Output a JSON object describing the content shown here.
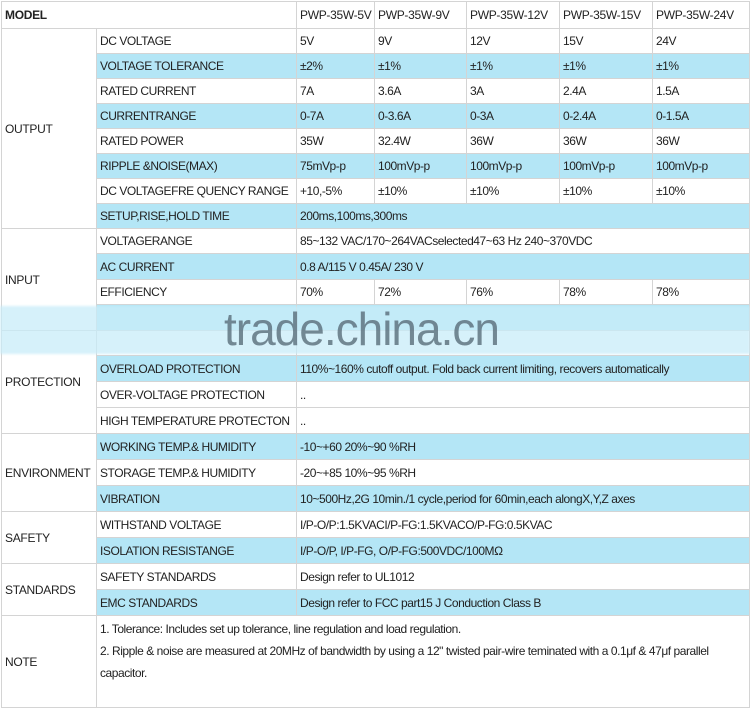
{
  "header": {
    "model_label": "MODEL",
    "models": [
      "PWP-35W-5V",
      "PWP-35W-9V",
      "PWP-35W-12V",
      "PWP-35W-15V",
      "PWP-35W-24V"
    ]
  },
  "output": {
    "section": "OUTPUT",
    "rows": [
      {
        "label": "DC VOLTAGE",
        "values": [
          "5V",
          "9V",
          "12V",
          "15V",
          "24V"
        ]
      },
      {
        "label": "VOLTAGE TOLERANCE",
        "values": [
          "±2%",
          "±1%",
          "±1%",
          "±1%",
          "±1%"
        ]
      },
      {
        "label": "RATED CURRENT",
        "values": [
          "7A",
          "3.6A",
          "3A",
          "2.4A",
          "1.5A"
        ]
      },
      {
        "label": "CURRENTRANGE",
        "values": [
          "0-7A",
          "0-3.6A",
          "0-3A",
          "0-2.4A",
          "0-1.5A"
        ]
      },
      {
        "label": "RATED POWER",
        "values": [
          "35W",
          "32.4W",
          "36W",
          "36W",
          "36W"
        ]
      },
      {
        "label": "RIPPLE &NOISE(MAX)",
        "values": [
          "75mVp-p",
          "100mVp-p",
          "100mVp-p",
          "100mVp-p",
          "100mVp-p"
        ]
      },
      {
        "label": "DC VOLTAGEFRE QUENCY RANGE",
        "values": [
          "+10,-5%",
          "±10%",
          "±10%",
          "±10%",
          "±10%"
        ]
      },
      {
        "label": "SETUP,RISE,HOLD TIME",
        "value": "200ms,100ms,300ms"
      }
    ]
  },
  "input": {
    "section": "INPUT",
    "rows": [
      {
        "label": "VOLTAGERANGE",
        "value": "85~132 VAC/170~264VACselected47~63 Hz 240~370VDC"
      },
      {
        "label": "AC CURRENT",
        "value": "0.8 A/115 V 0.45A/ 230 V"
      },
      {
        "label": "EFFICIENCY",
        "values": [
          "70%",
          "72%",
          "76%",
          "78%",
          "78%"
        ]
      }
    ]
  },
  "protection": {
    "section": "PROTECTION",
    "rows": [
      {
        "label": "OVERLOAD PROTECTION",
        "value": "110%~160% cutoff output. Fold back current limiting, recovers automatically"
      },
      {
        "label": "OVER-VOLTAGE PROTECTION",
        "value": ".."
      },
      {
        "label": "HIGH TEMPERATURE PROTECTON",
        "value": ".."
      }
    ]
  },
  "environment": {
    "section": "ENVIRONMENT",
    "rows": [
      {
        "label": "WORKING TEMP.& HUMIDITY",
        "value": "-10~+60 20%~90 %RH"
      },
      {
        "label": "STORAGE TEMP.& HUMIDITY",
        "value": "-20~+85 10%~95 %RH"
      },
      {
        "label": "VIBRATION",
        "value": "10~500Hz,2G 10min./1 cycle,period for 60min,each alongX,Y,Z axes"
      }
    ]
  },
  "safety": {
    "section": "SAFETY",
    "rows": [
      {
        "label": "WITHSTAND VOLTAGE",
        "value": "I/P-O/P:1.5KVACI/P-FG:1.5KVACO/P-FG:0.5KVAC"
      },
      {
        "label": "ISOLATION RESISTANGE",
        "value": "I/P-O/P, I/P-FG, O/P-FG:500VDC/100MΩ"
      }
    ]
  },
  "standards": {
    "section": "STANDARDS",
    "rows": [
      {
        "label": "SAFETY STANDARDS",
        "value": "Design refer to UL1012"
      },
      {
        "label": "EMC STANDARDS",
        "value": "Design refer to FCC part15 J Conduction Class B"
      }
    ]
  },
  "note": {
    "section": "NOTE",
    "lines": [
      "1. Tolerance: Includes set up tolerance, line regulation and load regulation.",
      "2. Ripple & noise are measured at 20MHz of bandwidth by using a 12\" twisted pair-wire teminated with a 0.1μf & 47μf parallel capacitor."
    ]
  },
  "watermark": "trade.china.cn",
  "colors": {
    "row_highlight": "#b4e6f6",
    "border": "#d4d4d4"
  }
}
